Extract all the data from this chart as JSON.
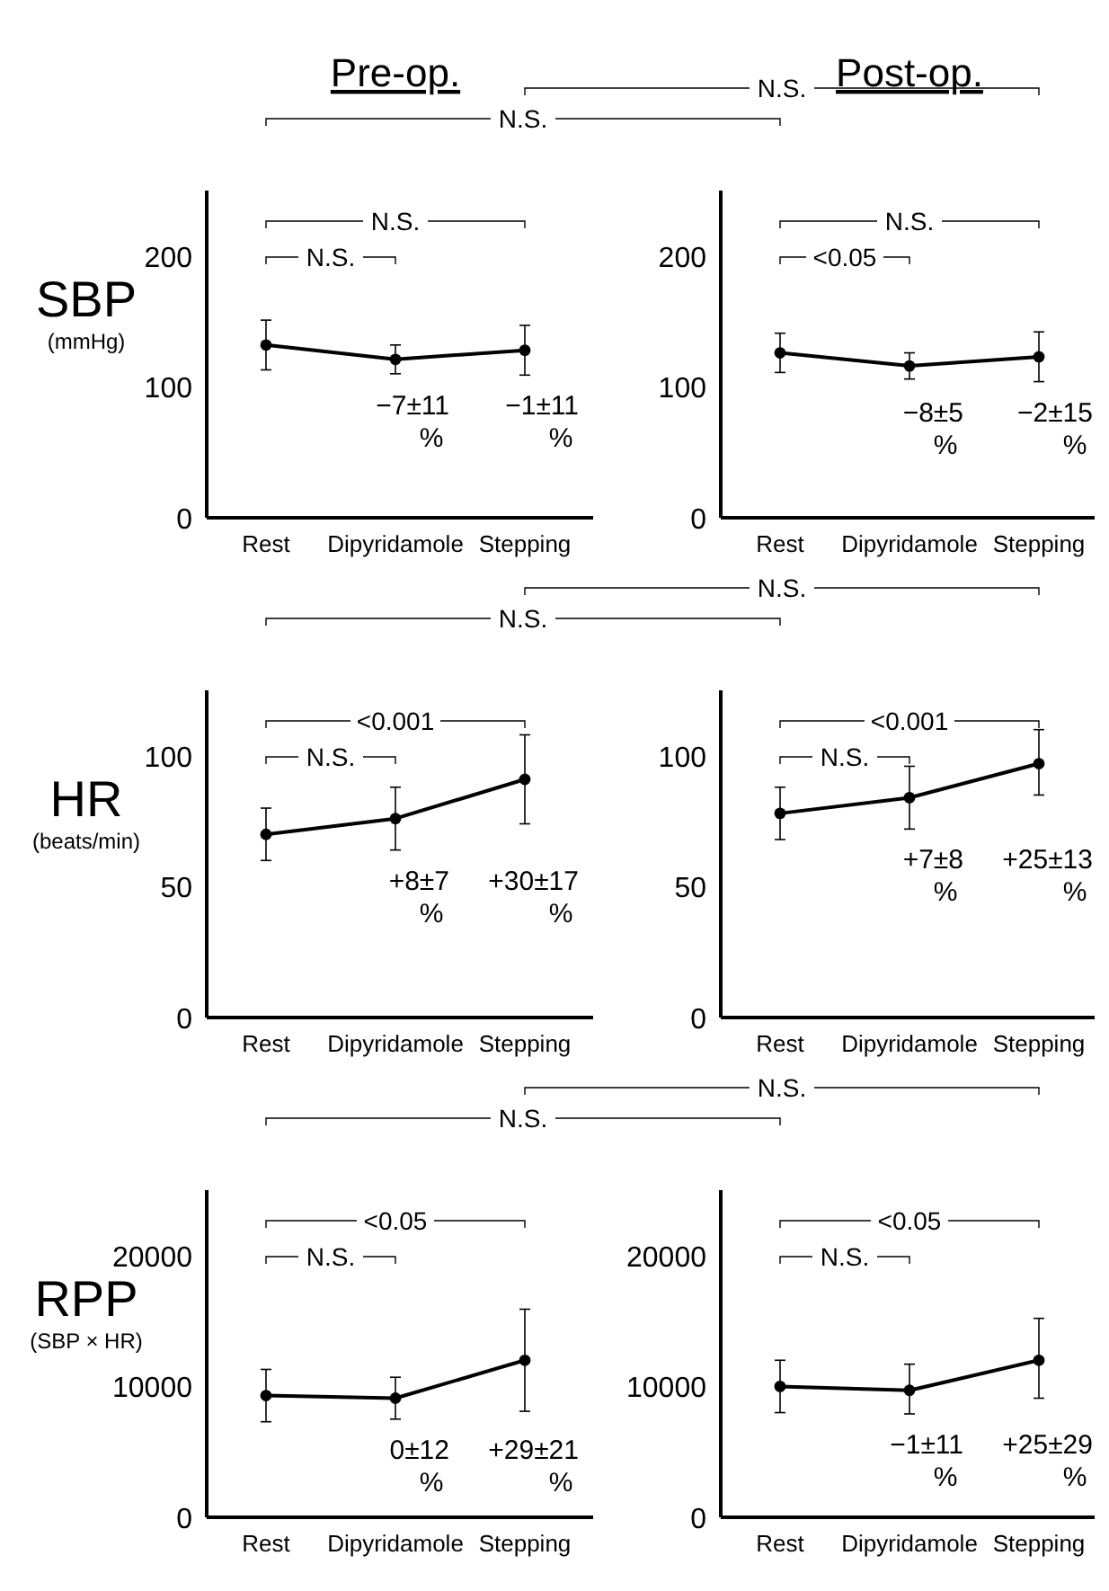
{
  "chart_data": [
    {
      "type": "line",
      "title": "Pre-op.",
      "ylabel": "SBP (mmHg)",
      "categories": [
        "Rest",
        "Dipyridamole",
        "Stepping"
      ],
      "series": [
        {
          "color": "#000000",
          "values": [
            132,
            121,
            128
          ],
          "errors": [
            19,
            11,
            19
          ]
        }
      ],
      "ylim": [
        0,
        250
      ],
      "yticks": [
        0,
        100,
        200
      ],
      "marker": "circle",
      "line_style": "solid",
      "annotations": [
        "N.S.",
        "N.S.",
        "N.S.",
        "−7±11 %",
        "−1±11 %"
      ]
    },
    {
      "type": "line",
      "title": "Post-op.",
      "categories": [
        "Rest",
        "Dipyridamole",
        "Stepping"
      ],
      "series": [
        {
          "color": "#000000",
          "values": [
            126,
            116,
            123
          ],
          "errors": [
            15,
            10,
            19
          ]
        }
      ],
      "ylim": [
        0,
        250
      ],
      "yticks": [
        0,
        100,
        200
      ],
      "marker": "circle",
      "line_style": "solid",
      "annotations": [
        "<0.05",
        "N.S.",
        "N.S.",
        "−8±5 %",
        "−2±15 %"
      ]
    },
    {
      "type": "line",
      "ylabel": "HR (beats/min)",
      "categories": [
        "Rest",
        "Dipyridamole",
        "Stepping"
      ],
      "series": [
        {
          "color": "#000000",
          "values": [
            70,
            76,
            91
          ],
          "errors": [
            10,
            12,
            17
          ]
        }
      ],
      "ylim": [
        0,
        125
      ],
      "yticks": [
        0,
        50,
        100
      ],
      "marker": "circle",
      "line_style": "solid",
      "annotations": [
        "N.S.",
        "<0.001",
        "N.S.",
        "+8±7 %",
        "+30±17 %"
      ]
    },
    {
      "type": "line",
      "categories": [
        "Rest",
        "Dipyridamole",
        "Stepping"
      ],
      "series": [
        {
          "color": "#000000",
          "values": [
            78,
            84,
            97
          ],
          "errors": [
            10,
            12,
            [
              85,
              110
            ]
          ]
        }
      ],
      "ylim": [
        0,
        125
      ],
      "yticks": [
        0,
        50,
        100
      ],
      "marker": "circle",
      "line_style": "solid",
      "annotations": [
        "N.S.",
        "<0.001",
        "N.S.",
        "+7±8 %",
        "+25±13 %"
      ]
    },
    {
      "type": "line",
      "ylabel": "RPP (SBP × HR)",
      "categories": [
        "Rest",
        "Dipyridamole",
        "Stepping"
      ],
      "series": [
        {
          "color": "#000000",
          "values": [
            9300,
            9100,
            12000
          ],
          "errors": [
            2000,
            1600,
            [
              8100,
              15900
            ]
          ]
        }
      ],
      "ylim": [
        0,
        25000
      ],
      "yticks": [
        0,
        10000,
        20000
      ],
      "marker": "circle",
      "line_style": "solid",
      "annotations": [
        "N.S.",
        "<0.05",
        "N.S.",
        "0±12 %",
        "+29±21 %"
      ]
    },
    {
      "type": "line",
      "categories": [
        "Rest",
        "Dipyridamole",
        "Stepping"
      ],
      "series": [
        {
          "color": "#000000",
          "values": [
            10000,
            9700,
            12000
          ],
          "errors": [
            2000,
            [
              7900,
              11700
            ],
            [
              9100,
              15200
            ]
          ]
        }
      ],
      "ylim": [
        0,
        25000
      ],
      "yticks": [
        0,
        10000,
        20000
      ],
      "marker": "circle",
      "line_style": "solid",
      "annotations": [
        "N.S.",
        "<0.05",
        "N.S.",
        "−1±11 %",
        "+25±29 %"
      ]
    }
  ]
}
